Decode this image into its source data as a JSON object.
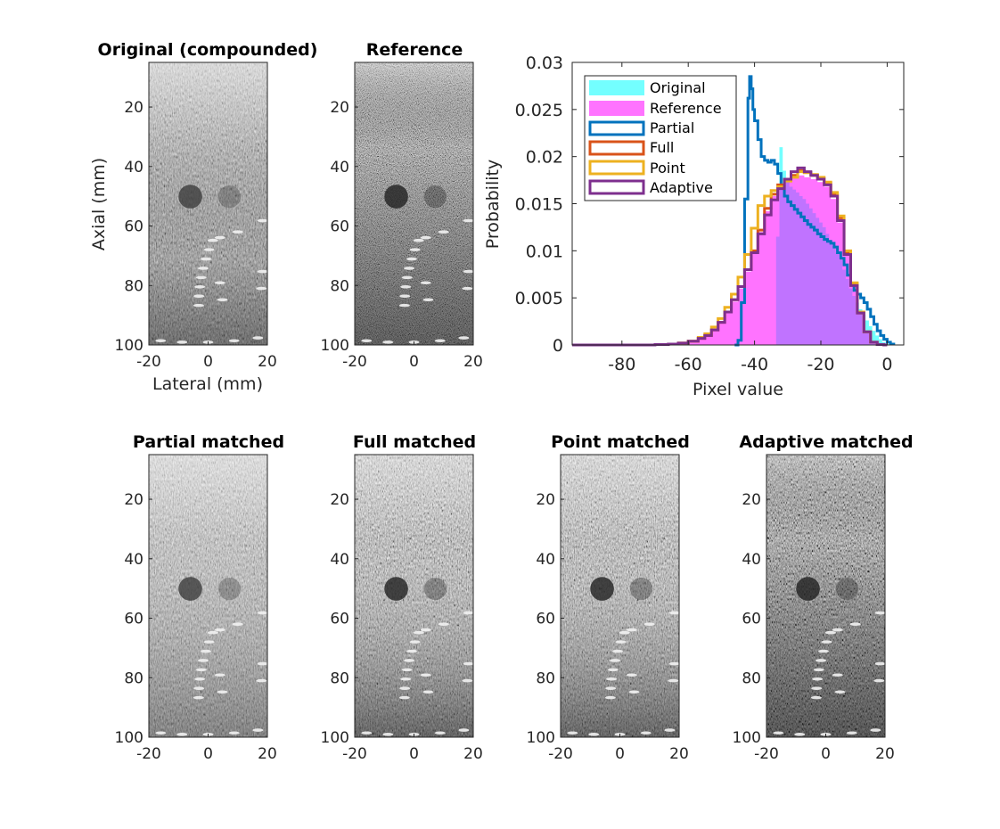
{
  "chart_data": [
    {
      "type": "image",
      "id": "orig",
      "title": "Original (compounded)",
      "xlabel": "Lateral (mm)",
      "ylabel": "Axial (mm)",
      "xlim": [
        -20,
        20
      ],
      "ylim": [
        5,
        100
      ],
      "xticks": [
        "-20",
        "0",
        "20"
      ],
      "yticks": [
        "20",
        "40",
        "60",
        "80",
        "100"
      ],
      "style": "compounded"
    },
    {
      "type": "image",
      "id": "ref",
      "title": "Reference",
      "xlabel": "",
      "ylabel": "",
      "xlim": [
        -20,
        20
      ],
      "ylim": [
        5,
        100
      ],
      "xticks": [
        "-20",
        "0",
        "20"
      ],
      "yticks": [
        "20",
        "40",
        "60",
        "80",
        "100"
      ],
      "style": "reference"
    },
    {
      "type": "histogram",
      "id": "hist",
      "title": "",
      "xlabel": "Pixel value",
      "ylabel": "Probability",
      "xlim": [
        -95,
        5
      ],
      "ylim": [
        0,
        0.03
      ],
      "xticks": [
        "-80",
        "-60",
        "-40",
        "-20",
        "0"
      ],
      "xtick_values": [
        -80,
        -60,
        -40,
        -20,
        0
      ],
      "yticks": [
        "0",
        "0.005",
        "0.01",
        "0.015",
        "0.02",
        "0.025",
        "0.03"
      ],
      "ytick_values": [
        0,
        0.005,
        0.01,
        0.015,
        0.02,
        0.025,
        0.03
      ],
      "legend_position": "top-left",
      "series": [
        {
          "name": "Original",
          "style": "filled",
          "color": "#00FFFF",
          "x": [
            -34,
            -33.5,
            -32.5,
            -31.5,
            -30.5,
            -29.5,
            -28.5,
            -27.5,
            -26.5,
            -25.5,
            -24.5,
            -23.5,
            -22.5,
            -21.5,
            -20.5,
            -19.5,
            -18.5,
            -17.5,
            -16.5,
            -15.5,
            -14.5,
            -13.5,
            -12.5,
            -11.5,
            -10.5,
            -9.5,
            -8.5,
            -7.5,
            -6.5,
            -5.5,
            -4.5,
            -3.5,
            -2.5,
            -1.5,
            -0.5,
            0.5,
            1.5
          ],
          "y": [
            0,
            0.0115,
            0.021,
            0.0185,
            0.0175,
            0.0168,
            0.0165,
            0.0162,
            0.0158,
            0.0155,
            0.015,
            0.0145,
            0.014,
            0.0135,
            0.013,
            0.0125,
            0.0118,
            0.011,
            0.0105,
            0.0098,
            0.009,
            0.008,
            0.007,
            0.006,
            0.0052,
            0.0045,
            0.0038,
            0.0032,
            0.0026,
            0.002,
            0.0015,
            0.001,
            0.0006,
            0.0003,
            0.0001,
            0,
            0
          ]
        },
        {
          "name": "Reference",
          "style": "filled",
          "color": "#FF00FF",
          "x": [
            -95,
            -80,
            -75,
            -70,
            -66,
            -63,
            -60,
            -57,
            -55,
            -53,
            -51,
            -49,
            -47,
            -45,
            -43,
            -41,
            -39,
            -37,
            -35,
            -33,
            -31,
            -29,
            -27,
            -25,
            -23,
            -21,
            -19,
            -17,
            -15,
            -13,
            -11,
            -9,
            -7,
            -5,
            -3,
            -1,
            0
          ],
          "y": [
            0,
            0,
            0,
            5e-05,
            0.0001,
            0.0002,
            0.0004,
            0.0007,
            0.001,
            0.0016,
            0.0024,
            0.0034,
            0.0046,
            0.006,
            0.0078,
            0.0098,
            0.012,
            0.0142,
            0.0158,
            0.0168,
            0.0174,
            0.0178,
            0.018,
            0.0178,
            0.0176,
            0.0173,
            0.0168,
            0.0155,
            0.013,
            0.0095,
            0.0062,
            0.0033,
            0.0013,
            0.0003,
            5e-05,
            0,
            0
          ]
        },
        {
          "name": "Partial",
          "style": "outline",
          "color": "#0072BD",
          "x": [
            -46,
            -45,
            -44,
            -43,
            -42,
            -41.5,
            -41,
            -40.5,
            -40,
            -39,
            -38,
            -37,
            -36,
            -35,
            -34,
            -33,
            -32,
            -31,
            -30,
            -29,
            -28,
            -27,
            -26,
            -25,
            -24,
            -23,
            -22,
            -21,
            -20,
            -19,
            -18,
            -17,
            -16,
            -15,
            -14,
            -13,
            -12,
            -11,
            -10,
            -9,
            -8,
            -7,
            -6,
            -5,
            -4,
            -3,
            -2,
            -1,
            0,
            1,
            2
          ],
          "y": [
            0,
            0.0005,
            0.0045,
            0.0155,
            0.0262,
            0.0285,
            0.0272,
            0.025,
            0.0238,
            0.0218,
            0.02,
            0.0196,
            0.0194,
            0.0196,
            0.0192,
            0.0182,
            0.0168,
            0.0158,
            0.0152,
            0.0148,
            0.0144,
            0.014,
            0.0136,
            0.0132,
            0.0128,
            0.0125,
            0.0122,
            0.0118,
            0.0115,
            0.0112,
            0.011,
            0.0108,
            0.0104,
            0.0098,
            0.0092,
            0.0085,
            0.0074,
            0.0064,
            0.0058,
            0.0054,
            0.005,
            0.0045,
            0.0038,
            0.003,
            0.0022,
            0.0015,
            0.001,
            0.0006,
            0.0003,
            0.0001,
            0
          ]
        },
        {
          "name": "Full",
          "style": "outline",
          "color": "#D95319",
          "x": [
            -95,
            -80,
            -75,
            -70,
            -66,
            -63,
            -60,
            -57,
            -55,
            -53,
            -51,
            -49,
            -47,
            -45,
            -43,
            -41,
            -39,
            -37,
            -35,
            -33,
            -31,
            -29,
            -27,
            -25,
            -23,
            -21,
            -19,
            -17,
            -15,
            -13,
            -11,
            -9,
            -7,
            -5,
            -3,
            -1,
            0
          ],
          "y": [
            0,
            0,
            0,
            5e-05,
            0.0001,
            0.0002,
            0.0004,
            0.0007,
            0.001,
            0.0016,
            0.0024,
            0.0035,
            0.0048,
            0.0062,
            0.008,
            0.01,
            0.0122,
            0.0145,
            0.016,
            0.017,
            0.0176,
            0.018,
            0.0185,
            0.0183,
            0.018,
            0.0177,
            0.0172,
            0.016,
            0.0135,
            0.0098,
            0.0064,
            0.0034,
            0.0014,
            0.0003,
            5e-05,
            0,
            0
          ]
        },
        {
          "name": "Point",
          "style": "outline",
          "color": "#EDB120",
          "x": [
            -95,
            -80,
            -75,
            -70,
            -66,
            -63,
            -60,
            -57,
            -55,
            -53,
            -51,
            -49,
            -47,
            -45,
            -43,
            -41,
            -39,
            -37,
            -35,
            -33,
            -31,
            -29,
            -27,
            -25,
            -23,
            -21,
            -19,
            -17,
            -15,
            -13,
            -11,
            -9,
            -7,
            -5,
            -3,
            -1,
            0
          ],
          "y": [
            0,
            0,
            0,
            5e-05,
            0.0001,
            0.0002,
            0.0004,
            0.0008,
            0.0012,
            0.0019,
            0.0028,
            0.004,
            0.0054,
            0.0072,
            0.0096,
            0.0124,
            0.0148,
            0.0158,
            0.0164,
            0.0168,
            0.0174,
            0.0178,
            0.0184,
            0.0183,
            0.0181,
            0.0178,
            0.0173,
            0.0162,
            0.0137,
            0.01,
            0.0066,
            0.0035,
            0.0014,
            0.0003,
            5e-05,
            0,
            0
          ]
        },
        {
          "name": "Adaptive",
          "style": "outline",
          "color": "#7E2F8E",
          "x": [
            -95,
            -80,
            -75,
            -70,
            -66,
            -63,
            -60,
            -57,
            -55,
            -53,
            -51,
            -49,
            -47,
            -45,
            -43,
            -41,
            -39,
            -37,
            -35,
            -33,
            -31,
            -29,
            -27,
            -25,
            -23,
            -21,
            -19,
            -17,
            -15,
            -13,
            -11,
            -9,
            -7,
            -5,
            -3,
            -1,
            0
          ],
          "y": [
            0,
            0,
            0,
            5e-05,
            0.0001,
            0.0002,
            0.0004,
            0.0007,
            0.001,
            0.0016,
            0.0024,
            0.0035,
            0.0048,
            0.0062,
            0.008,
            0.0098,
            0.0118,
            0.0138,
            0.0154,
            0.0166,
            0.0176,
            0.0184,
            0.0188,
            0.0184,
            0.018,
            0.0176,
            0.017,
            0.0158,
            0.0132,
            0.0096,
            0.0063,
            0.0034,
            0.0014,
            0.0003,
            5e-05,
            0,
            0
          ]
        }
      ]
    },
    {
      "type": "image",
      "id": "partial",
      "title": "Partial matched",
      "xlabel": "",
      "ylabel": "",
      "xlim": [
        -20,
        20
      ],
      "ylim": [
        5,
        100
      ],
      "xticks": [
        "-20",
        "0",
        "20"
      ],
      "yticks": [
        "20",
        "40",
        "60",
        "80",
        "100"
      ],
      "style": "partial"
    },
    {
      "type": "image",
      "id": "full",
      "title": "Full matched",
      "xlabel": "",
      "ylabel": "",
      "xlim": [
        -20,
        20
      ],
      "ylim": [
        5,
        100
      ],
      "xticks": [
        "-20",
        "0",
        "20"
      ],
      "yticks": [
        "20",
        "40",
        "60",
        "80",
        "100"
      ],
      "style": "full"
    },
    {
      "type": "image",
      "id": "point",
      "title": "Point matched",
      "xlabel": "",
      "ylabel": "",
      "xlim": [
        -20,
        20
      ],
      "ylim": [
        5,
        100
      ],
      "xticks": [
        "-20",
        "0",
        "20"
      ],
      "yticks": [
        "20",
        "40",
        "60",
        "80",
        "100"
      ],
      "style": "point"
    },
    {
      "type": "image",
      "id": "adaptive",
      "title": "Adaptive matched",
      "xlabel": "",
      "ylabel": "",
      "xlim": [
        -20,
        20
      ],
      "ylim": [
        5,
        100
      ],
      "xticks": [
        "-20",
        "0",
        "20"
      ],
      "yticks": [
        "20",
        "40",
        "60",
        "80",
        "100"
      ],
      "style": "adaptive"
    }
  ]
}
